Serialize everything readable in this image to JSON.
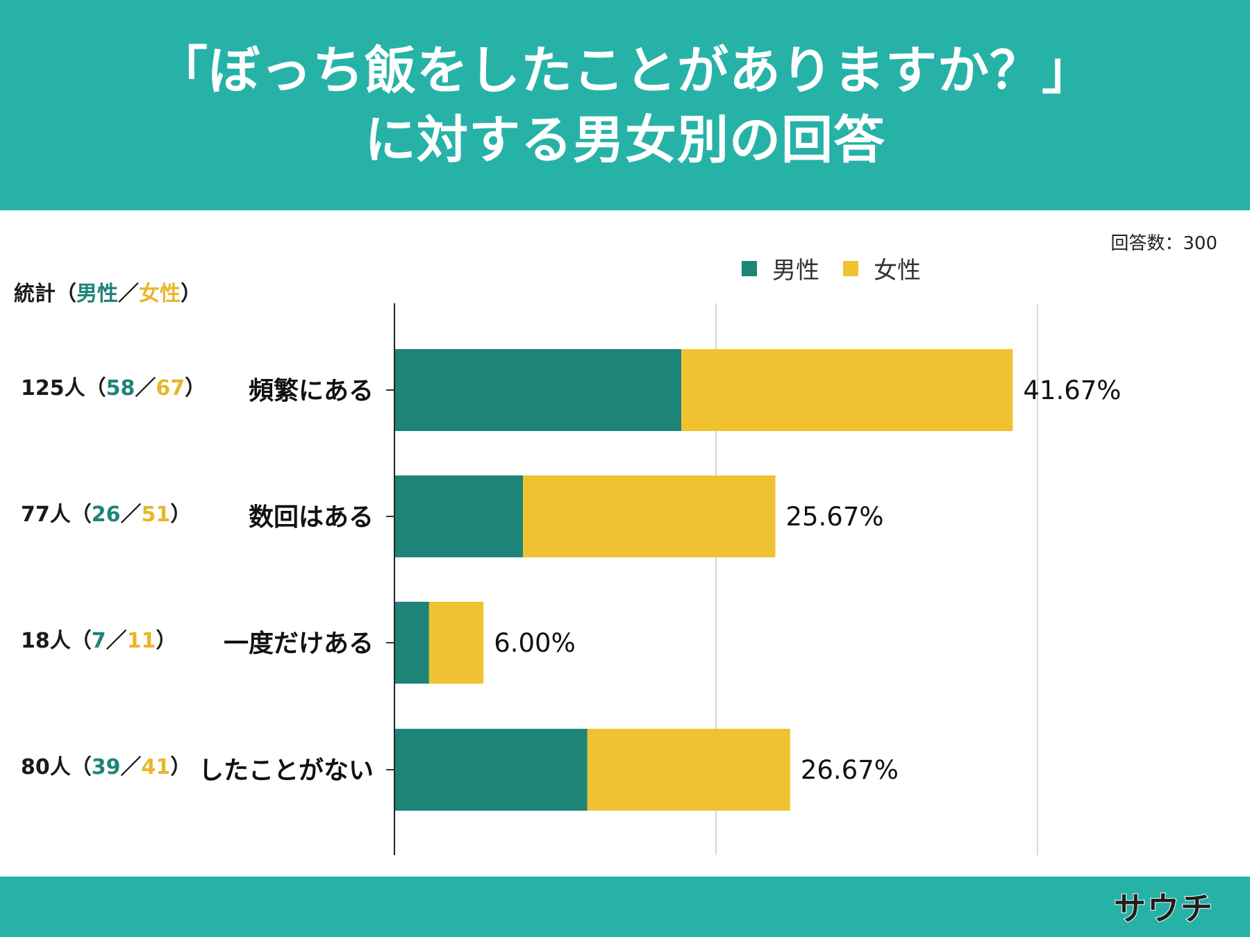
{
  "header": {
    "title_line1": "「ぼっち飯をしたことがありますか？」",
    "title_line2": "に対する男女別の回答"
  },
  "respondents": "回答数：300",
  "stats": {
    "head_prefix": "統計（",
    "head_male": "男性",
    "head_sep": "／",
    "head_female": "女性",
    "head_suffix": "）",
    "rows": [
      {
        "total": "125人（",
        "male": "58",
        "sep": "／",
        "female": "67",
        "close": "）"
      },
      {
        "total": "77人（",
        "male": "26",
        "sep": "／",
        "female": "51",
        "close": "）"
      },
      {
        "total": "18人（",
        "male": "7",
        "sep": "／",
        "female": "11",
        "close": "）"
      },
      {
        "total": "80人（",
        "male": "39",
        "sep": "／",
        "female": "41",
        "close": "）"
      }
    ]
  },
  "logo": "サウチ",
  "colors": {
    "header_bg": "#27b2a8",
    "male": "#1e8478",
    "female": "#f0c232"
  },
  "chart_data": {
    "type": "bar",
    "orientation": "horizontal",
    "stacked": true,
    "categories": [
      "頻繁にある",
      "数回はある",
      "一度だけある",
      "したことがない"
    ],
    "series": [
      {
        "name": "男性",
        "values": [
          58,
          26,
          7,
          39
        ]
      },
      {
        "name": "女性",
        "values": [
          67,
          51,
          11,
          41
        ]
      }
    ],
    "value_labels": [
      "41.67%",
      "25.67%",
      "6.00%",
      "26.67%"
    ],
    "xlim": [
      0,
      130
    ],
    "grid": true,
    "legend": "top"
  }
}
